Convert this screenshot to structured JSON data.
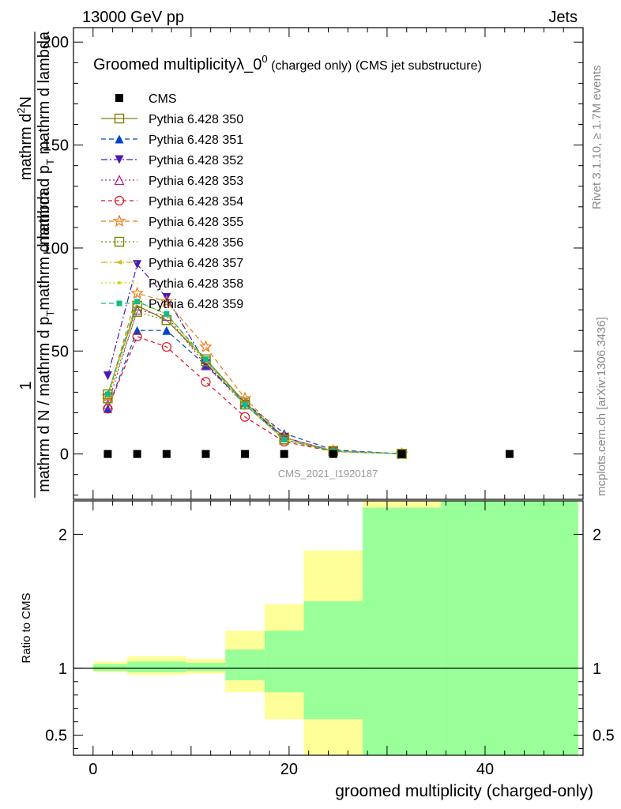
{
  "header": {
    "energy_label": "13000 GeV pp",
    "process_label": "Jets",
    "title_main": "Groomed multiplicity",
    "title_lambda": "λ_0",
    "title_sup": "0",
    "title_rest": " (charged only) (CMS jet substructure)",
    "analysis_id": "CMS_2021_I1920187",
    "side_rivet": "Rivet 3.1.10, ≥ 1.7M events",
    "side_mcplots": "mcplots.cern.ch [arXiv:1306.3436]"
  },
  "axes": {
    "ylabel_main_numerator_a": "1",
    "ylabel_main_denominator": "mathrm d N / mathrm d p",
    "ylabel_main_denominator_sub": "T",
    "ylabel_main_denominator_tail": "mathrm d lambda",
    "ylabel_main_right_a": "mathrm d",
    "ylabel_main_right_sup": "2",
    "ylabel_main_right_b": "N",
    "ylabel_main_right_den": "mathrm d p",
    "ylabel_main_right_den_sub": "T",
    "ylabel_main_right_den_tail": " mathrm d lambda",
    "ylabel_ratio": "Ratio to CMS",
    "xlabel": "groomed multiplicity (charged-only)"
  },
  "chart_data": {
    "type": "line",
    "xlim": [
      -2,
      50
    ],
    "ylim_main": [
      -22,
      207
    ],
    "ylim_ratio": [
      0.35,
      2.25
    ],
    "x_ticks": [
      0,
      20,
      40
    ],
    "y_ticks_main": [
      0,
      50,
      100,
      150,
      200
    ],
    "y_ticks_ratio": [
      0.5,
      1,
      2
    ],
    "data_series": {
      "name": "CMS",
      "x": [
        1.5,
        4.5,
        7.5,
        11.5,
        15.5,
        19.5,
        24.5,
        31.5,
        42.5
      ],
      "values": [
        0,
        0,
        0,
        0,
        0,
        0,
        0,
        0,
        0
      ]
    },
    "mc_x": [
      1.5,
      4.5,
      7.5,
      11.5,
      15.5,
      19.5,
      24.5,
      31.5
    ],
    "series": [
      {
        "name": "Pythia 6.428 350",
        "color": "#808000",
        "marker": "square-open",
        "dash": "",
        "values": [
          29,
          72,
          65,
          46,
          25,
          8,
          1.5,
          0.1
        ]
      },
      {
        "name": "Pythia 6.428 351",
        "color": "#0044cc",
        "marker": "triangle-up",
        "dash": "6,4",
        "values": [
          22,
          60,
          60,
          43,
          25,
          10,
          2,
          0.1
        ]
      },
      {
        "name": "Pythia 6.428 352",
        "color": "#4b16b8",
        "marker": "triangle-down",
        "dash": "8,3,2,3",
        "values": [
          38,
          92,
          76,
          44,
          24,
          8,
          1.5,
          0.1
        ]
      },
      {
        "name": "Pythia 6.428 353",
        "color": "#b0208e",
        "marker": "triangle-open",
        "dash": "2,3",
        "values": [
          24,
          70,
          67,
          43,
          24,
          7,
          1.3,
          0.1
        ]
      },
      {
        "name": "Pythia 6.428 354",
        "color": "#dd1122",
        "marker": "circle-open",
        "dash": "5,4",
        "values": [
          22,
          57,
          52,
          35,
          18,
          6,
          1.2,
          0.1
        ]
      },
      {
        "name": "Pythia 6.428 355",
        "color": "#ee7711",
        "marker": "star-open",
        "dash": "6,4",
        "values": [
          28,
          78,
          74,
          52,
          27,
          8,
          1.5,
          0.1
        ]
      },
      {
        "name": "Pythia 6.428 356",
        "color": "#6c8c00",
        "marker": "square-open",
        "dash": "2,3",
        "values": [
          27,
          69,
          65,
          45,
          24,
          7,
          1.3,
          0.1
        ]
      },
      {
        "name": "Pythia 6.428 357",
        "color": "#ccbb00",
        "marker": "tri-left",
        "dash": "8,3,2,3",
        "values": [
          28,
          74,
          68,
          45,
          24,
          7,
          1.4,
          0.1
        ]
      },
      {
        "name": "Pythia 6.428 358",
        "color": "#d4d400",
        "marker": "dot",
        "dash": "2,3",
        "values": [
          28,
          74,
          68,
          45,
          24,
          7,
          1.4,
          0.1
        ]
      },
      {
        "name": "Pythia 6.428 359",
        "color": "#11bb88",
        "marker": "square-filled",
        "dash": "6,4",
        "values": [
          29,
          74,
          68,
          46,
          24,
          7,
          1.4,
          0.1
        ]
      }
    ],
    "ratio_bands": [
      {
        "x0": 0,
        "x1": 3.5,
        "yellow": [
          0.97,
          1.05
        ],
        "green": [
          0.98,
          1.03
        ]
      },
      {
        "x0": 3.5,
        "x1": 9.5,
        "yellow": [
          0.95,
          1.09
        ],
        "green": [
          0.97,
          1.05
        ]
      },
      {
        "x0": 9.5,
        "x1": 13.5,
        "yellow": [
          0.96,
          1.07
        ],
        "green": [
          0.98,
          1.04
        ]
      },
      {
        "x0": 13.5,
        "x1": 17.5,
        "yellow": [
          0.82,
          1.28
        ],
        "green": [
          0.91,
          1.14
        ]
      },
      {
        "x0": 17.5,
        "x1": 21.5,
        "yellow": [
          0.62,
          1.48
        ],
        "green": [
          0.82,
          1.28
        ]
      },
      {
        "x0": 21.5,
        "x1": 27.5,
        "yellow": [
          0.35,
          1.88
        ],
        "green": [
          0.62,
          1.5
        ]
      },
      {
        "x0": 27.5,
        "x1": 35.5,
        "yellow": [
          0.35,
          2.25
        ],
        "green": [
          0.35,
          2.2
        ]
      },
      {
        "x0": 35.5,
        "x1": 49.5,
        "yellow": [
          0.35,
          2.25
        ],
        "green": [
          0.35,
          2.25
        ]
      }
    ],
    "colors": {
      "yellow_band": "#ffff99",
      "green_band": "#99ff99"
    }
  }
}
